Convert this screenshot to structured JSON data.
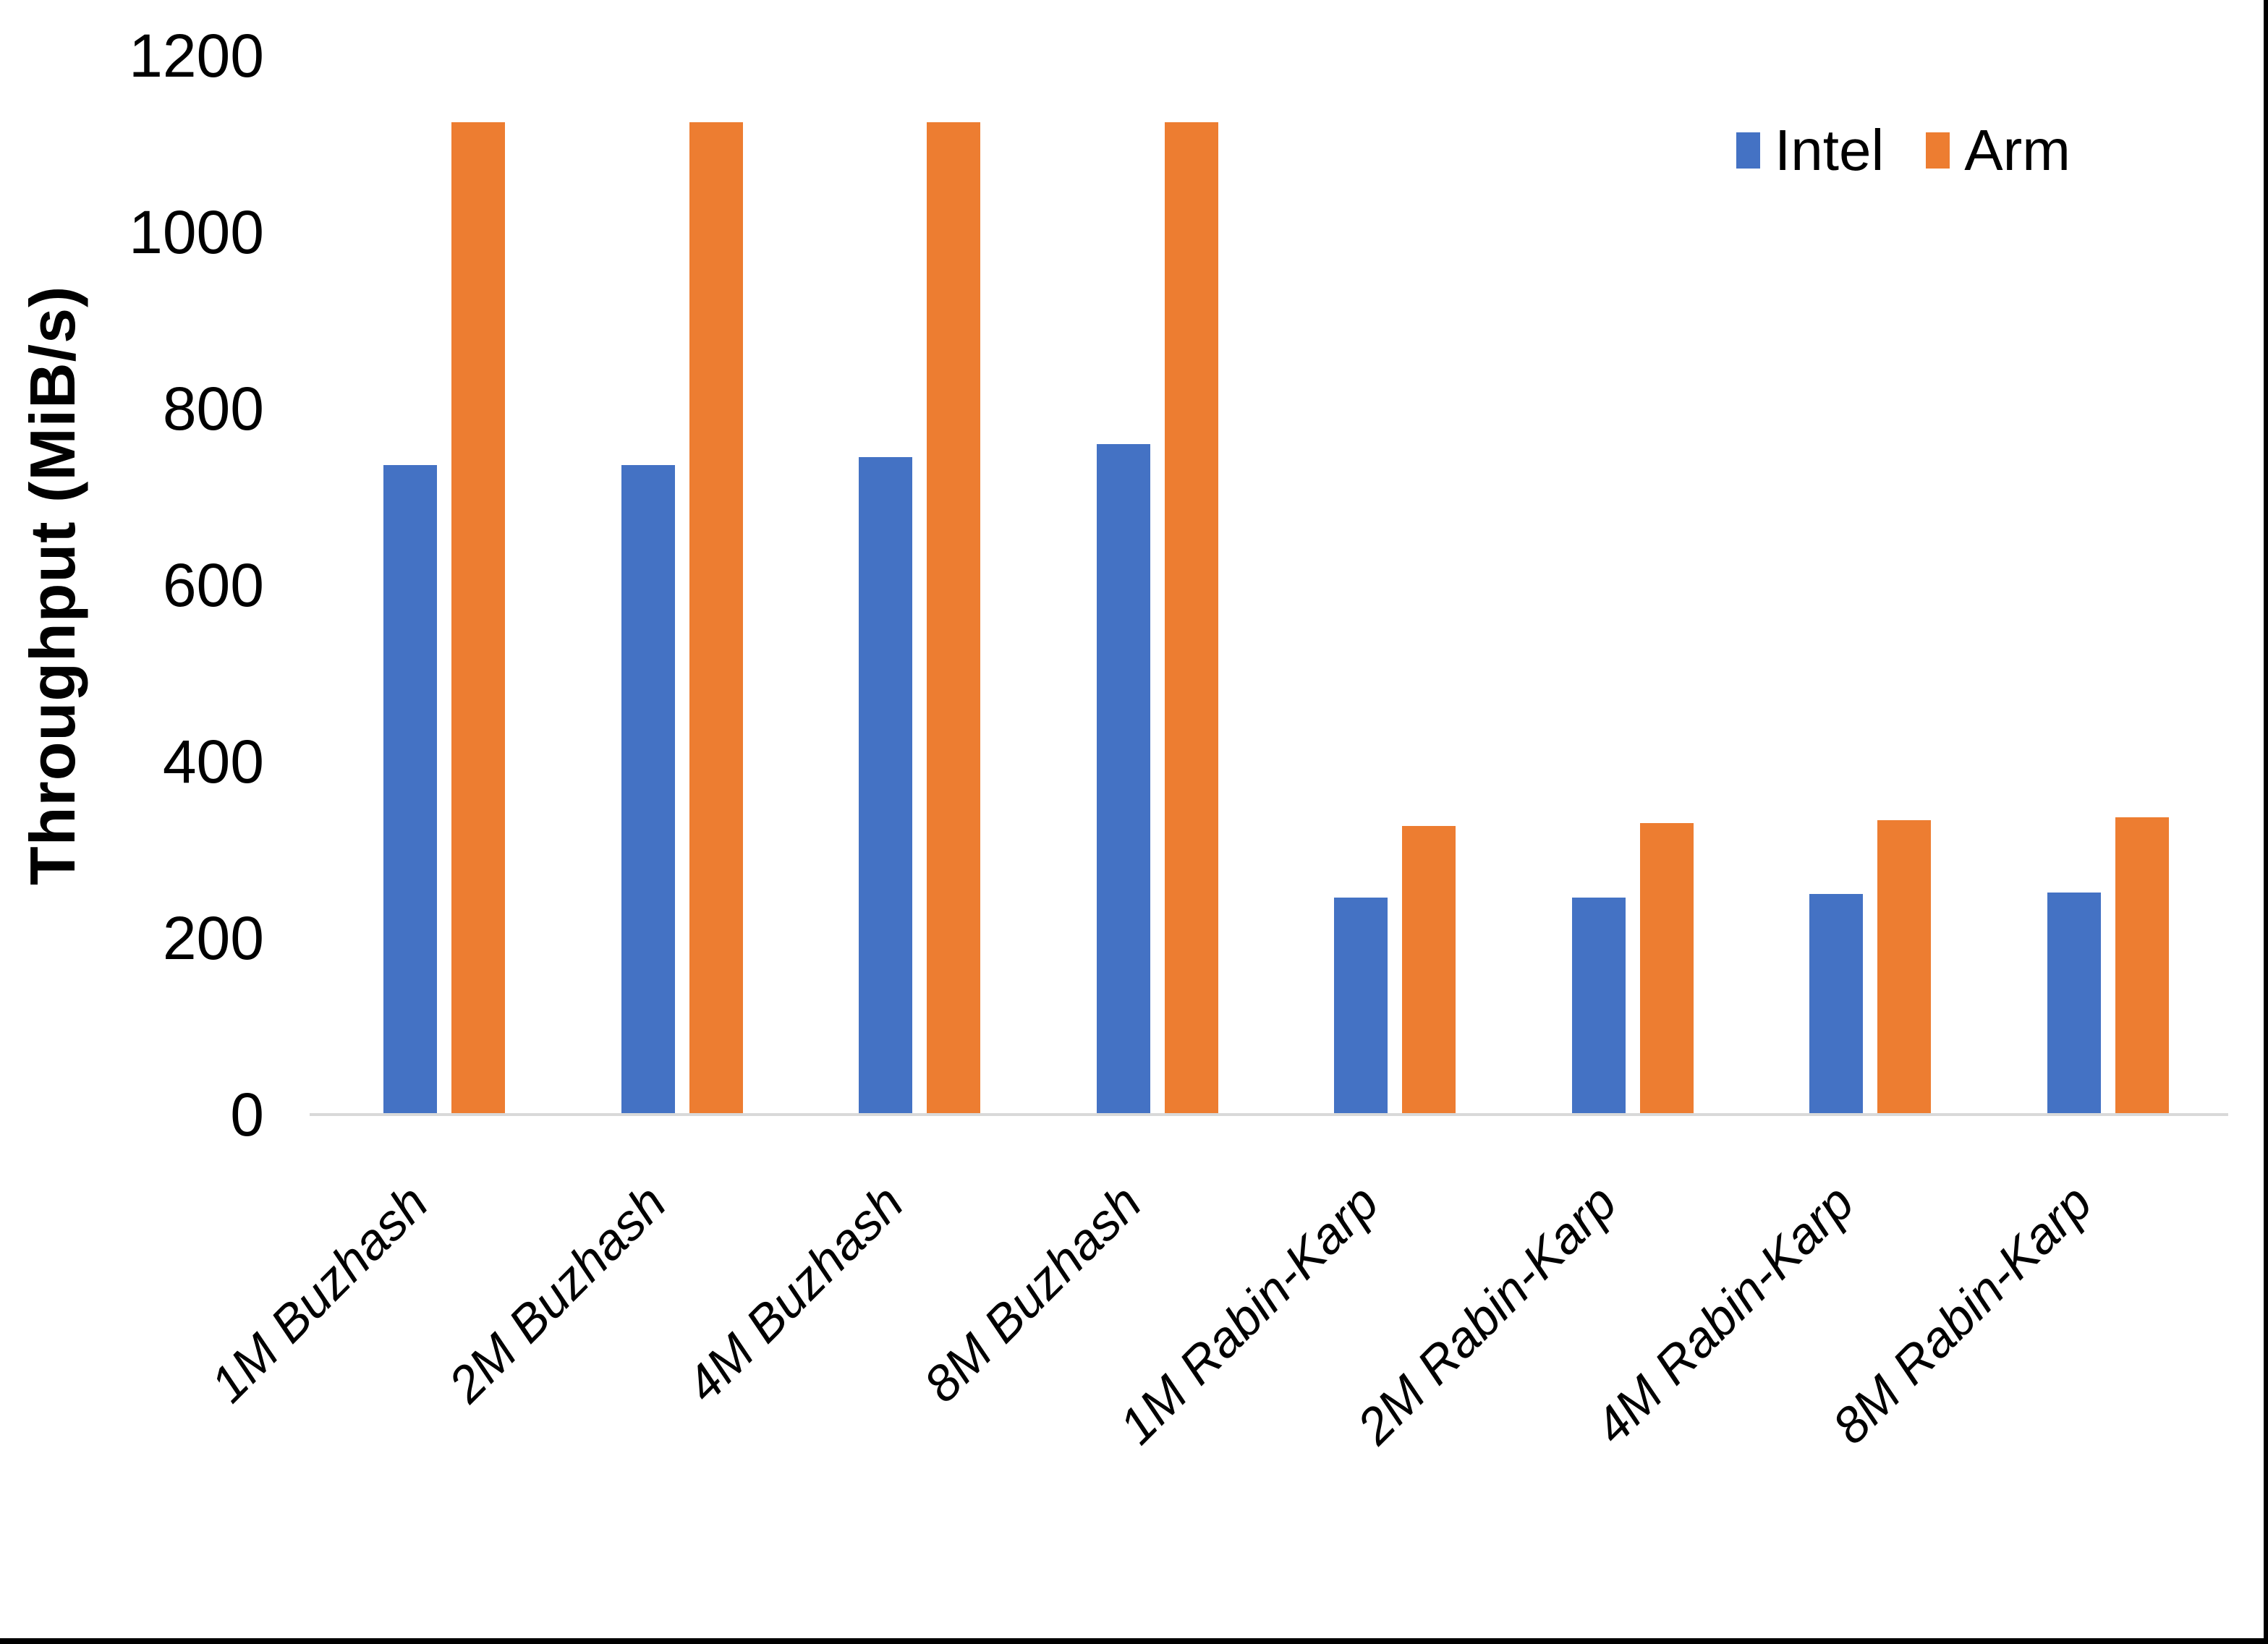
{
  "chart_data": {
    "type": "bar",
    "title": "",
    "xlabel": "",
    "ylabel": "Throughput (MiB/s)",
    "categories": [
      "1M Buzhash",
      "2M Buzhash",
      "4M Buzhash",
      "8M Buzhash",
      "1M Rabin-Karp",
      "2M Rabin-Karp",
      "4M Rabin-Karp",
      "8M Rabin-Karp"
    ],
    "series": [
      {
        "name": "Intel",
        "color": "#4472C4",
        "values": [
          736,
          736,
          745,
          760,
          246,
          246,
          250,
          252
        ]
      },
      {
        "name": "Arm",
        "color": "#ED7D31",
        "values": [
          1125,
          1125,
          1125,
          1125,
          327,
          330,
          334,
          337
        ]
      }
    ],
    "ylim": [
      0,
      1200
    ],
    "yticks": [
      0,
      200,
      400,
      600,
      800,
      1000,
      1200
    ],
    "grid": false,
    "legend_position": "top-right",
    "axis_line_color": "#D9D9D9",
    "text_color": "#000000",
    "background": "#FFFFFF"
  }
}
